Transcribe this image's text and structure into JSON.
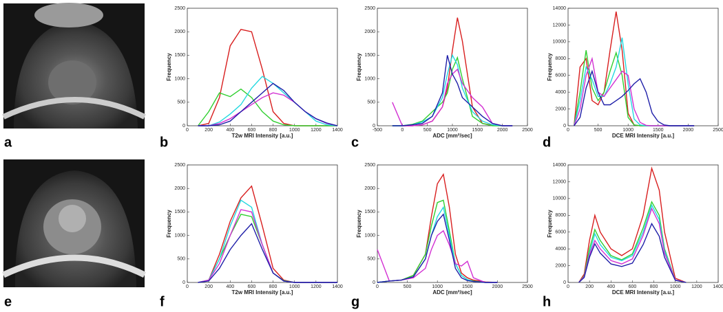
{
  "image_labels": [
    "a",
    "e"
  ],
  "chart_data": [
    {
      "type": "line",
      "label": "b",
      "xlabel": "T2w MRI Intensity [a.u.]",
      "ylabel": "Frequency",
      "xlim": [
        0,
        1400
      ],
      "xticks": [
        0,
        200,
        400,
        600,
        800,
        1000,
        1200,
        1400
      ],
      "ylim": [
        0,
        2500
      ],
      "yticks": [
        0,
        500,
        1000,
        1500,
        2000,
        2500
      ],
      "x": [
        100,
        200,
        300,
        400,
        500,
        600,
        700,
        800,
        900,
        1000,
        1100,
        1200,
        1300,
        1400
      ],
      "series": [
        {
          "color": "#d81e1e",
          "values": [
            0,
            50,
            600,
            1700,
            2050,
            2000,
            1200,
            300,
            50,
            0,
            0,
            0,
            0,
            0
          ]
        },
        {
          "color": "#2fcf2f",
          "values": [
            0,
            300,
            700,
            620,
            780,
            600,
            300,
            100,
            20,
            0,
            0,
            0,
            0,
            0
          ]
        },
        {
          "color": "#22d8e0",
          "values": [
            0,
            0,
            80,
            250,
            450,
            800,
            1050,
            900,
            700,
            500,
            300,
            100,
            20,
            0
          ]
        },
        {
          "color": "#d22fd2",
          "values": [
            0,
            0,
            50,
            150,
            300,
            450,
            600,
            700,
            650,
            500,
            300,
            150,
            50,
            0
          ]
        },
        {
          "color": "#1e1ea8",
          "values": [
            0,
            0,
            20,
            100,
            300,
            500,
            700,
            900,
            750,
            500,
            300,
            150,
            60,
            0
          ]
        }
      ]
    },
    {
      "type": "line",
      "label": "c",
      "xlabel": "ADC [mm²/sec]",
      "ylabel": "Frequency",
      "xlim": [
        -500,
        2500
      ],
      "xticks": [
        -500,
        0,
        500,
        1000,
        1500,
        2000,
        2500
      ],
      "ylim": [
        0,
        2500
      ],
      "yticks": [
        0,
        500,
        1000,
        1500,
        2000,
        2500
      ],
      "x": [
        -200,
        0,
        200,
        400,
        600,
        800,
        900,
        1000,
        1100,
        1200,
        1400,
        1600,
        1800,
        2000,
        2200
      ],
      "series": [
        {
          "color": "#d81e1e",
          "values": [
            0,
            0,
            0,
            20,
            100,
            400,
            800,
            1600,
            2300,
            1800,
            400,
            50,
            10,
            0,
            0
          ]
        },
        {
          "color": "#2fcf2f",
          "values": [
            0,
            0,
            30,
            100,
            300,
            500,
            700,
            1200,
            1450,
            1000,
            200,
            50,
            0,
            0,
            0
          ]
        },
        {
          "color": "#22d8e0",
          "values": [
            0,
            0,
            20,
            80,
            200,
            600,
            1100,
            1500,
            1300,
            800,
            300,
            100,
            20,
            0,
            0
          ]
        },
        {
          "color": "#d22fd2",
          "values": [
            500,
            0,
            0,
            20,
            100,
            400,
            900,
            1100,
            1200,
            900,
            600,
            400,
            50,
            0,
            0
          ]
        },
        {
          "color": "#1e1ea8",
          "values": [
            0,
            0,
            20,
            50,
            200,
            700,
            1500,
            1100,
            900,
            600,
            400,
            200,
            50,
            0,
            0
          ]
        }
      ]
    },
    {
      "type": "line",
      "label": "d",
      "xlabel": "DCE MRI Intensity [a.u.]",
      "ylabel": "Frequency",
      "xlim": [
        0,
        2500
      ],
      "xticks": [
        0,
        500,
        1000,
        1500,
        2000,
        2500
      ],
      "ylim": [
        0,
        14000
      ],
      "yticks": [
        0,
        2000,
        4000,
        6000,
        8000,
        10000,
        12000,
        14000
      ],
      "x": [
        100,
        200,
        300,
        400,
        500,
        600,
        700,
        800,
        900,
        1000,
        1100,
        1200,
        1300,
        1400,
        1500,
        1600,
        1700,
        1800,
        1900,
        2000,
        2100
      ],
      "series": [
        {
          "color": "#d81e1e",
          "values": [
            0,
            7000,
            8000,
            3000,
            2500,
            4000,
            9000,
            13600,
            9000,
            1500,
            100,
            0,
            0,
            0,
            0,
            0,
            0,
            0,
            0,
            0,
            0
          ]
        },
        {
          "color": "#2fcf2f",
          "values": [
            0,
            4000,
            9000,
            4500,
            3000,
            4000,
            6500,
            8700,
            6000,
            1000,
            100,
            0,
            0,
            0,
            0,
            0,
            0,
            0,
            0,
            0,
            0
          ]
        },
        {
          "color": "#22d8e0",
          "values": [
            0,
            3000,
            7000,
            5500,
            3500,
            3500,
            5000,
            7000,
            10500,
            5000,
            800,
            100,
            0,
            0,
            0,
            0,
            0,
            0,
            0,
            0,
            0
          ]
        },
        {
          "color": "#d22fd2",
          "values": [
            0,
            2000,
            6000,
            8000,
            4000,
            3500,
            4500,
            5500,
            6500,
            6000,
            2000,
            400,
            50,
            0,
            0,
            0,
            0,
            0,
            0,
            0,
            0
          ]
        },
        {
          "color": "#1e1ea8",
          "values": [
            0,
            1000,
            4500,
            6500,
            4000,
            2500,
            2500,
            3000,
            3500,
            4200,
            5000,
            5600,
            4000,
            1500,
            500,
            100,
            0,
            0,
            0,
            0,
            0
          ]
        }
      ]
    },
    {
      "type": "line",
      "label": "f",
      "xlabel": "T2w MRI Intensity [a.u.]",
      "ylabel": "Frequency",
      "xlim": [
        0,
        1400
      ],
      "xticks": [
        0,
        200,
        400,
        600,
        800,
        1000,
        1200,
        1400
      ],
      "ylim": [
        0,
        2500
      ],
      "yticks": [
        0,
        500,
        1000,
        1500,
        2000,
        2500
      ],
      "x": [
        100,
        200,
        300,
        400,
        500,
        600,
        700,
        800,
        900,
        1000,
        1100,
        1200,
        1300,
        1400
      ],
      "series": [
        {
          "color": "#d81e1e",
          "values": [
            0,
            50,
            600,
            1300,
            1800,
            2050,
            1200,
            300,
            50,
            0,
            0,
            0,
            0,
            0
          ]
        },
        {
          "color": "#2fcf2f",
          "values": [
            0,
            50,
            500,
            1000,
            1450,
            1400,
            800,
            200,
            40,
            0,
            0,
            0,
            0,
            0
          ]
        },
        {
          "color": "#22d8e0",
          "values": [
            0,
            50,
            500,
            1200,
            1750,
            1600,
            800,
            200,
            30,
            0,
            0,
            0,
            0,
            0
          ]
        },
        {
          "color": "#d22fd2",
          "values": [
            0,
            50,
            400,
            1000,
            1550,
            1500,
            800,
            200,
            30,
            0,
            0,
            0,
            0,
            0
          ]
        },
        {
          "color": "#1e1ea8",
          "values": [
            0,
            30,
            300,
            700,
            1000,
            1250,
            700,
            200,
            30,
            0,
            0,
            0,
            0,
            0
          ]
        }
      ]
    },
    {
      "type": "line",
      "label": "g",
      "xlabel": "ADC [mm²/sec]",
      "ylabel": "Frequency",
      "xlim": [
        0,
        2500
      ],
      "xticks": [
        0,
        500,
        1000,
        1500,
        2000,
        2500
      ],
      "ylim": [
        0,
        2500
      ],
      "yticks": [
        0,
        500,
        1000,
        1500,
        2000,
        2500
      ],
      "x": [
        0,
        200,
        400,
        600,
        800,
        900,
        1000,
        1100,
        1200,
        1300,
        1400,
        1500,
        1600,
        1800,
        2000
      ],
      "series": [
        {
          "color": "#d81e1e",
          "values": [
            0,
            30,
            50,
            150,
            600,
            1400,
            2100,
            2300,
            1600,
            600,
            200,
            100,
            50,
            10,
            0
          ]
        },
        {
          "color": "#2fcf2f",
          "values": [
            0,
            30,
            50,
            150,
            600,
            1200,
            1700,
            1750,
            1100,
            400,
            150,
            60,
            30,
            0,
            0
          ]
        },
        {
          "color": "#22d8e0",
          "values": [
            0,
            30,
            50,
            120,
            500,
            1000,
            1400,
            1600,
            1000,
            400,
            150,
            60,
            20,
            0,
            0
          ]
        },
        {
          "color": "#d22fd2",
          "values": [
            700,
            30,
            50,
            100,
            300,
            700,
            1000,
            1100,
            800,
            400,
            350,
            450,
            100,
            0,
            0
          ]
        },
        {
          "color": "#1e1ea8",
          "values": [
            0,
            30,
            50,
            120,
            500,
            1000,
            1300,
            1450,
            900,
            300,
            100,
            40,
            20,
            0,
            0
          ]
        }
      ]
    },
    {
      "type": "line",
      "label": "h",
      "xlabel": "DCE MRI Intensity [a.u.]",
      "ylabel": "Frequency",
      "xlim": [
        0,
        1400
      ],
      "xticks": [
        0,
        200,
        400,
        600,
        800,
        1000,
        1200,
        1400
      ],
      "ylim": [
        0,
        14000
      ],
      "yticks": [
        0,
        2000,
        4000,
        6000,
        8000,
        10000,
        12000,
        14000
      ],
      "x": [
        100,
        150,
        200,
        250,
        300,
        400,
        500,
        600,
        700,
        780,
        850,
        900,
        1000,
        1100
      ],
      "series": [
        {
          "color": "#d81e1e",
          "values": [
            0,
            1000,
            5000,
            8000,
            6000,
            4000,
            3200,
            4000,
            8000,
            13600,
            11000,
            6000,
            500,
            0
          ]
        },
        {
          "color": "#2fcf2f",
          "values": [
            0,
            800,
            4000,
            6300,
            5000,
            3200,
            2700,
            3400,
            6500,
            9600,
            8000,
            4000,
            300,
            0
          ]
        },
        {
          "color": "#22d8e0",
          "values": [
            0,
            700,
            3500,
            5800,
            4500,
            3000,
            2600,
            3200,
            6000,
            9200,
            7500,
            3800,
            300,
            0
          ]
        },
        {
          "color": "#d22fd2",
          "values": [
            0,
            700,
            3300,
            5000,
            4000,
            2600,
            2200,
            2800,
            5600,
            8800,
            7000,
            3500,
            300,
            0
          ]
        },
        {
          "color": "#1e1ea8",
          "values": [
            0,
            600,
            3000,
            4600,
            3500,
            2200,
            1900,
            2300,
            4500,
            7000,
            5500,
            3000,
            250,
            0
          ]
        }
      ]
    }
  ]
}
